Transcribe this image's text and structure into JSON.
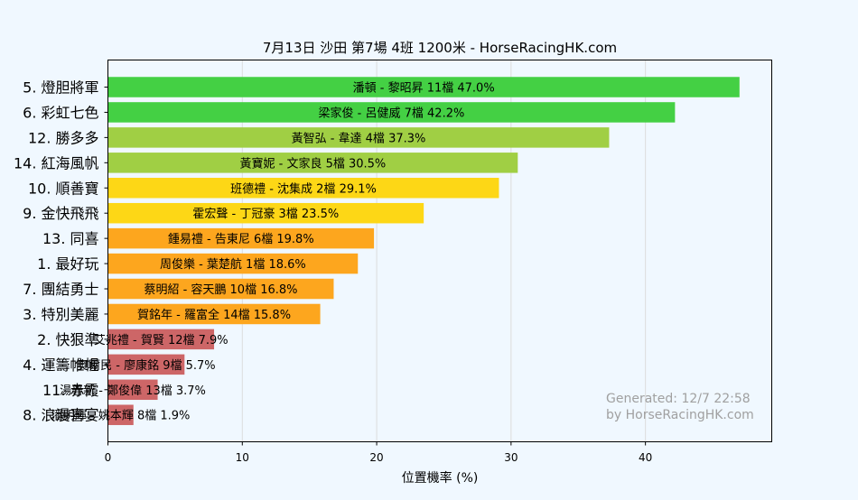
{
  "chart_data": {
    "type": "bar",
    "orientation": "horizontal",
    "title": "7月13日  沙田  第7場  4班  1200米 - HorseRacingHK.com",
    "xlabel": "位置機率 (%)",
    "ylabel": "",
    "xlim": [
      0,
      49.4
    ],
    "xticks": [
      0,
      10,
      20,
      30,
      40
    ],
    "grid": true,
    "categories": [
      "5. 燈胆將軍",
      "6. 彩虹七色",
      "12. 勝多多",
      "14. 紅海風帆",
      "10. 順善寶",
      "9. 金快飛飛",
      "13. 同喜",
      "1. 最好玩",
      "7. 團結勇士",
      "3. 特別美麗",
      "2. 快狠準",
      "4. 運籌帷幄",
      "11. 赤霞",
      "8. 浪漫喜宴"
    ],
    "values": [
      47.0,
      42.2,
      37.3,
      30.5,
      29.1,
      23.5,
      19.8,
      18.6,
      16.8,
      15.8,
      7.9,
      5.7,
      3.7,
      1.9
    ],
    "bar_labels": [
      "潘頓 - 黎昭昇 11檔  47.0%",
      "梁家俊 - 呂健威 7檔  42.2%",
      "黃智弘 - 韋達 4檔  37.3%",
      "黃寶妮 - 文家良 5檔  30.5%",
      "班德禮 - 沈集成 2檔  29.1%",
      "霍宏聲 - 丁冠豪 3檔  23.5%",
      "鍾易禮 - 告東尼 6檔  19.8%",
      "周俊樂 - 葉楚航 1檔  18.6%",
      "蔡明紹 - 容天鵬 10檔  16.8%",
      "賀銘年 - 羅富全 14檔  15.8%",
      "艾兆禮 - 賀賢 12檔  7.9%",
      "奧爾民 - 廖康銘 9檔  5.7%",
      "湯普新 - 鄭俊偉 13檔  3.7%",
      "潘明輝 - 姚本輝 8檔  1.9%"
    ],
    "bar_colors": [
      "#44d044",
      "#44d044",
      "#a0cf44",
      "#a0cf44",
      "#fdd716",
      "#fdd716",
      "#fda61e",
      "#fda61e",
      "#fda61e",
      "#fda61e",
      "#cd6667",
      "#cd6667",
      "#cd6667",
      "#cd6667"
    ],
    "annotation_lines": [
      "Generated: 12/7 22:58",
      "by HorseRacingHK.com"
    ],
    "colors": {
      "background": "#f0f8ff",
      "plot_background": "#f0f8ff",
      "grid": "#dcdcdc",
      "annotation": "#a0a0a0",
      "text": "#000000"
    }
  }
}
